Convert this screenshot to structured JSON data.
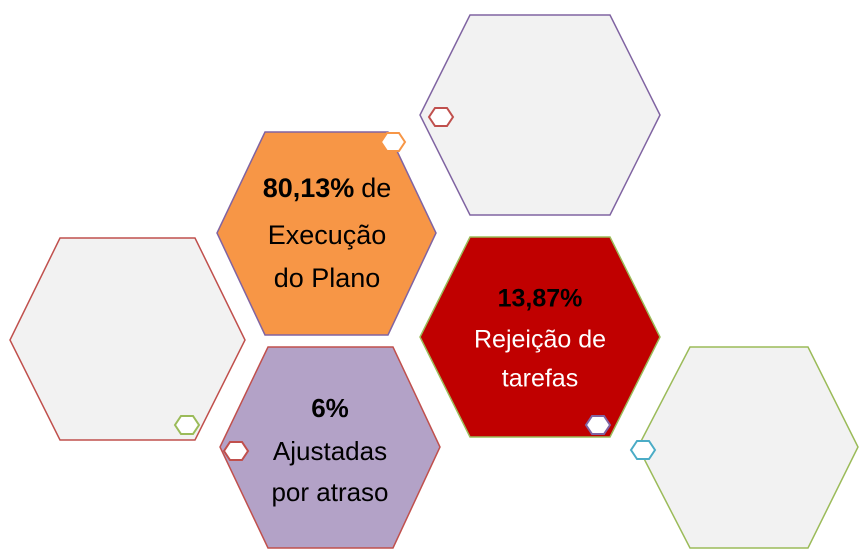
{
  "hexagons": [
    {
      "lead": "80,13%",
      "lead_suffix": "de",
      "lines": [
        "Execução",
        "do Plano"
      ]
    },
    {
      "lead": "13,87%",
      "lines": [
        "Rejeição de",
        "tarefas"
      ]
    },
    {
      "lead": "6%",
      "lines": [
        "Ajustadas",
        "por atraso"
      ]
    }
  ]
}
